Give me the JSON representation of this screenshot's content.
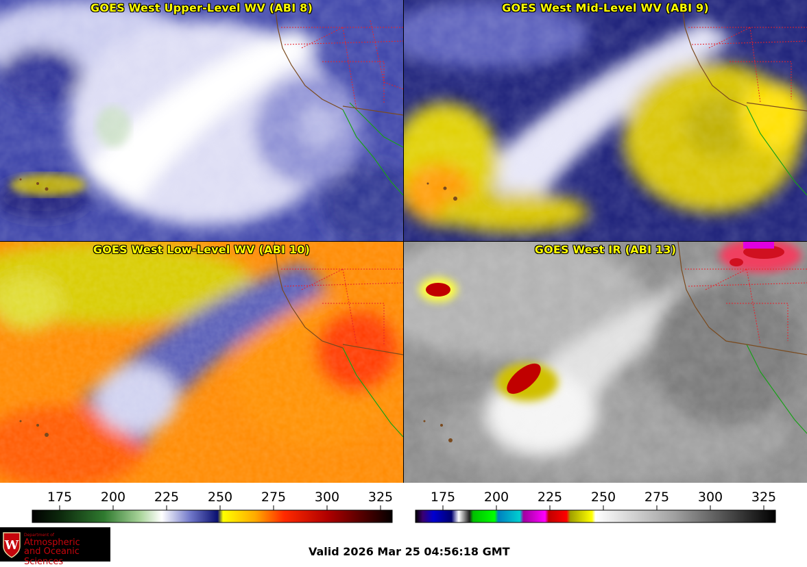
{
  "panels": [
    {
      "title": "GOES West Upper-Level WV (ABI 8)",
      "palette": "wv-upper"
    },
    {
      "title": "GOES West Mid-Level WV (ABI 9)",
      "palette": "wv-mid"
    },
    {
      "title": "GOES West Low-Level WV (ABI 10)",
      "palette": "wv-low"
    },
    {
      "title": "GOES West IR (ABI 13)",
      "palette": "ir"
    }
  ],
  "colorbars": {
    "wv": {
      "ticks": [
        "175",
        "200",
        "225",
        "250",
        "275",
        "300",
        "325"
      ]
    },
    "ir": {
      "ticks": [
        "175",
        "200",
        "225",
        "250",
        "275",
        "300",
        "325"
      ]
    }
  },
  "logo": {
    "line1": "Department of",
    "line2": "Atmospheric",
    "line3": "and Oceanic Sciences",
    "seal_letter": "W"
  },
  "valid_time": "Valid 2026 Mar 25 04:56:18 GMT",
  "colors": {
    "title": "#ffff00",
    "state_borders": "#e8202a",
    "coastline": "#7a4a1e",
    "mexico_coast": "#18a018",
    "logo_red": "#c5050c"
  }
}
